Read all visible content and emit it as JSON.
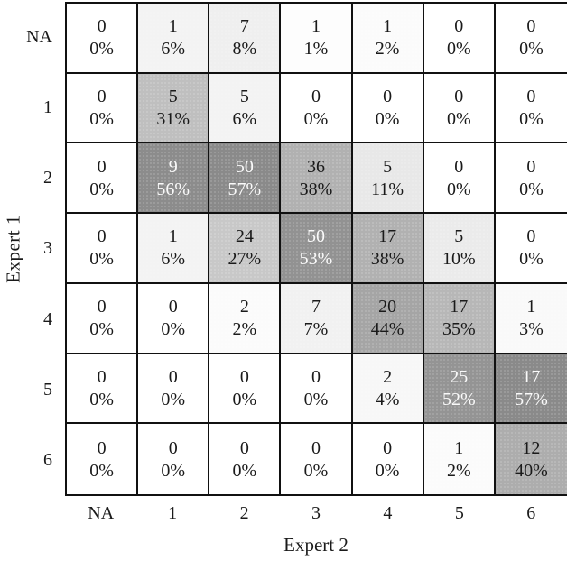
{
  "chart_data": {
    "type": "heatmap",
    "title": "",
    "xlabel": "Expert 2",
    "ylabel": "Expert 1",
    "row_labels": [
      "NA",
      "1",
      "2",
      "3",
      "4",
      "5",
      "6"
    ],
    "col_labels": [
      "NA",
      "1",
      "2",
      "3",
      "4",
      "5",
      "6"
    ],
    "counts": [
      [
        0,
        1,
        7,
        1,
        1,
        0,
        0
      ],
      [
        0,
        5,
        5,
        0,
        0,
        0,
        0
      ],
      [
        0,
        9,
        50,
        36,
        5,
        0,
        0
      ],
      [
        0,
        1,
        24,
        50,
        17,
        5,
        0
      ],
      [
        0,
        0,
        2,
        7,
        20,
        17,
        1
      ],
      [
        0,
        0,
        0,
        0,
        2,
        25,
        17
      ],
      [
        0,
        0,
        0,
        0,
        0,
        1,
        12
      ]
    ],
    "percents": [
      [
        0,
        6,
        8,
        1,
        2,
        0,
        0
      ],
      [
        0,
        31,
        6,
        0,
        0,
        0,
        0
      ],
      [
        0,
        56,
        57,
        38,
        11,
        0,
        0
      ],
      [
        0,
        6,
        27,
        53,
        38,
        10,
        0
      ],
      [
        0,
        0,
        2,
        7,
        44,
        35,
        3
      ],
      [
        0,
        0,
        0,
        0,
        4,
        52,
        57
      ],
      [
        0,
        0,
        0,
        0,
        0,
        2,
        40
      ]
    ],
    "percent_suffix": "%",
    "legend_position": "none",
    "grid": true,
    "colors": {
      "border": "#111111",
      "text_dark": "#1a1a1a",
      "text_light": "#fafafa",
      "cell_zero": "#ffffff"
    },
    "shading": {
      "lightness_per_percent": 2.05,
      "base_lightness": 255,
      "white_text_threshold_pct": 50
    }
  }
}
